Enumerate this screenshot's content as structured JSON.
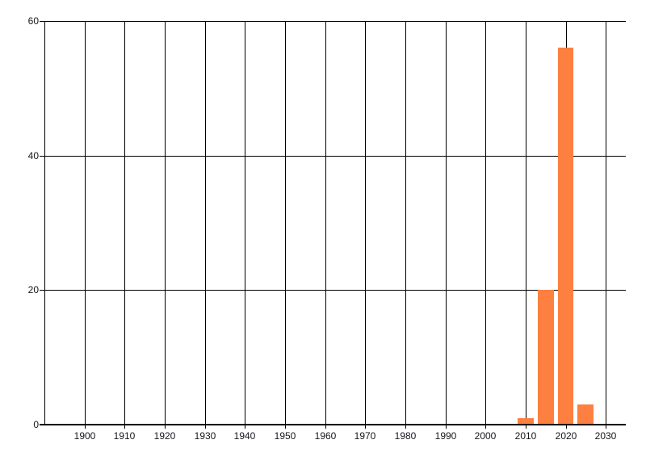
{
  "chart_data": {
    "type": "bar",
    "title": "",
    "xlabel": "",
    "ylabel": "",
    "x": [
      2010,
      2015,
      2020,
      2025
    ],
    "values": [
      1,
      20,
      56,
      3
    ],
    "bar_width_years": 4,
    "xlim": [
      1890,
      2035
    ],
    "ylim": [
      0,
      60
    ],
    "x_ticks": [
      1900,
      1910,
      1920,
      1930,
      1940,
      1950,
      1960,
      1970,
      1980,
      1990,
      2000,
      2010,
      2020,
      2030
    ],
    "y_ticks": [
      0,
      20,
      40,
      60
    ],
    "grid": true,
    "legend_position": "none",
    "colors": {
      "bar": "#fd8040",
      "grid": "#000000",
      "axis": "#000000",
      "text": "#15151c",
      "background": "#ffffff"
    }
  }
}
